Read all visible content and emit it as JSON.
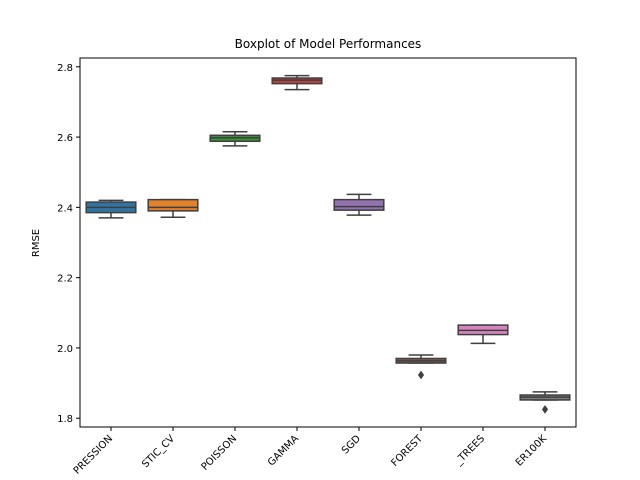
{
  "chart_data": {
    "type": "box",
    "title": "Boxplot of Model Performances",
    "xlabel": "",
    "ylabel": "RMSE",
    "ylim": [
      1.775,
      2.825
    ],
    "yticks": [
      1.8,
      2.0,
      2.2,
      2.4,
      2.6,
      2.8
    ],
    "ytick_labels": [
      "1.8",
      "2.0",
      "2.2",
      "2.4",
      "2.6",
      "2.8"
    ],
    "grid": false,
    "categories": [
      "PRESSION",
      "STIC_CV",
      "POISSON",
      "GAMMA",
      "SGD",
      "FOREST",
      "_TREES",
      "ER100K"
    ],
    "boxes": [
      {
        "label": "PRESSION",
        "color": "#3274a1",
        "whislo": 2.37,
        "q1": 2.385,
        "med": 2.4,
        "q3": 2.415,
        "whishi": 2.42,
        "fliers": []
      },
      {
        "label": "STIC_CV",
        "color": "#e1812c",
        "whislo": 2.372,
        "q1": 2.39,
        "med": 2.4,
        "q3": 2.422,
        "whishi": 2.422,
        "fliers": []
      },
      {
        "label": "POISSON",
        "color": "#3a923a",
        "whislo": 2.575,
        "q1": 2.588,
        "med": 2.598,
        "q3": 2.605,
        "whishi": 2.615,
        "fliers": []
      },
      {
        "label": "GAMMA",
        "color": "#c03d3e",
        "whislo": 2.735,
        "q1": 2.752,
        "med": 2.762,
        "q3": 2.768,
        "whishi": 2.775,
        "fliers": []
      },
      {
        "label": "SGD",
        "color": "#9372b2",
        "whislo": 2.378,
        "q1": 2.392,
        "med": 2.402,
        "q3": 2.422,
        "whishi": 2.437,
        "fliers": []
      },
      {
        "label": "FOREST",
        "color": "#845b53",
        "whislo": 1.957,
        "q1": 1.957,
        "med": 1.963,
        "q3": 1.97,
        "whishi": 1.98,
        "fliers": [
          1.923
        ]
      },
      {
        "label": "_TREES",
        "color": "#d684bd",
        "whislo": 2.013,
        "q1": 2.038,
        "med": 2.05,
        "q3": 2.065,
        "whishi": 2.065,
        "fliers": []
      },
      {
        "label": "ER100K",
        "color": "#7f7f7f",
        "whislo": 1.852,
        "q1": 1.852,
        "med": 1.86,
        "q3": 1.866,
        "whishi": 1.875,
        "fliers": [
          1.825
        ]
      }
    ]
  }
}
